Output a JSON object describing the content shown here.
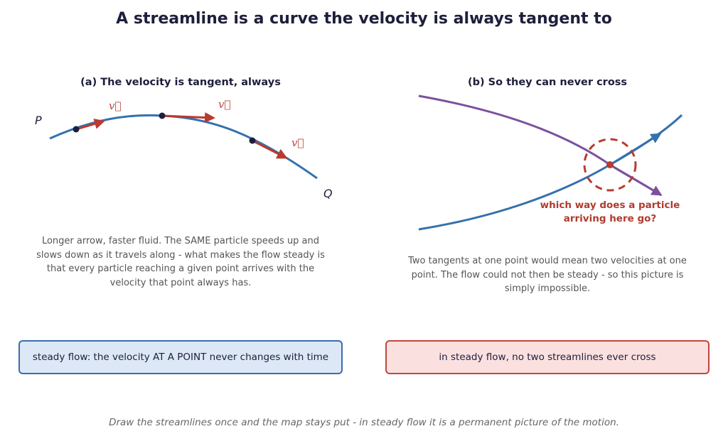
{
  "title": "A streamline is a curve the velocity is always tangent to",
  "panel_a": {
    "title": "(a) The velocity is tangent, always",
    "label_p": "P",
    "label_q": "Q",
    "velocity_labels": [
      "v⃗",
      "v⃗",
      "v⃗"
    ],
    "caption": "Longer arrow, faster fluid. The SAME particle speeds up and slows down as it travels along - what makes the flow steady is that every particle reaching a given point arrives with the velocity that point always has.",
    "summary": "steady flow: the velocity AT A POINT never changes with time"
  },
  "panel_b": {
    "title": "(b) So they can never cross",
    "question": "which way does a particle arriving here go?",
    "caption": "Two tangents at one point would mean two velocities at one point. The flow could not then be steady - so this picture is simply impossible.",
    "summary": "in steady flow, no two streamlines ever cross"
  },
  "footer": "Draw the streamlines once and the map stays put - in steady flow it is a permanent picture of the motion.",
  "colors": {
    "streamline_blue": "#3471ad",
    "streamline_purple": "#7b519d",
    "velocity_red": "#b93a30",
    "point_dark": "#1e1e3c"
  }
}
